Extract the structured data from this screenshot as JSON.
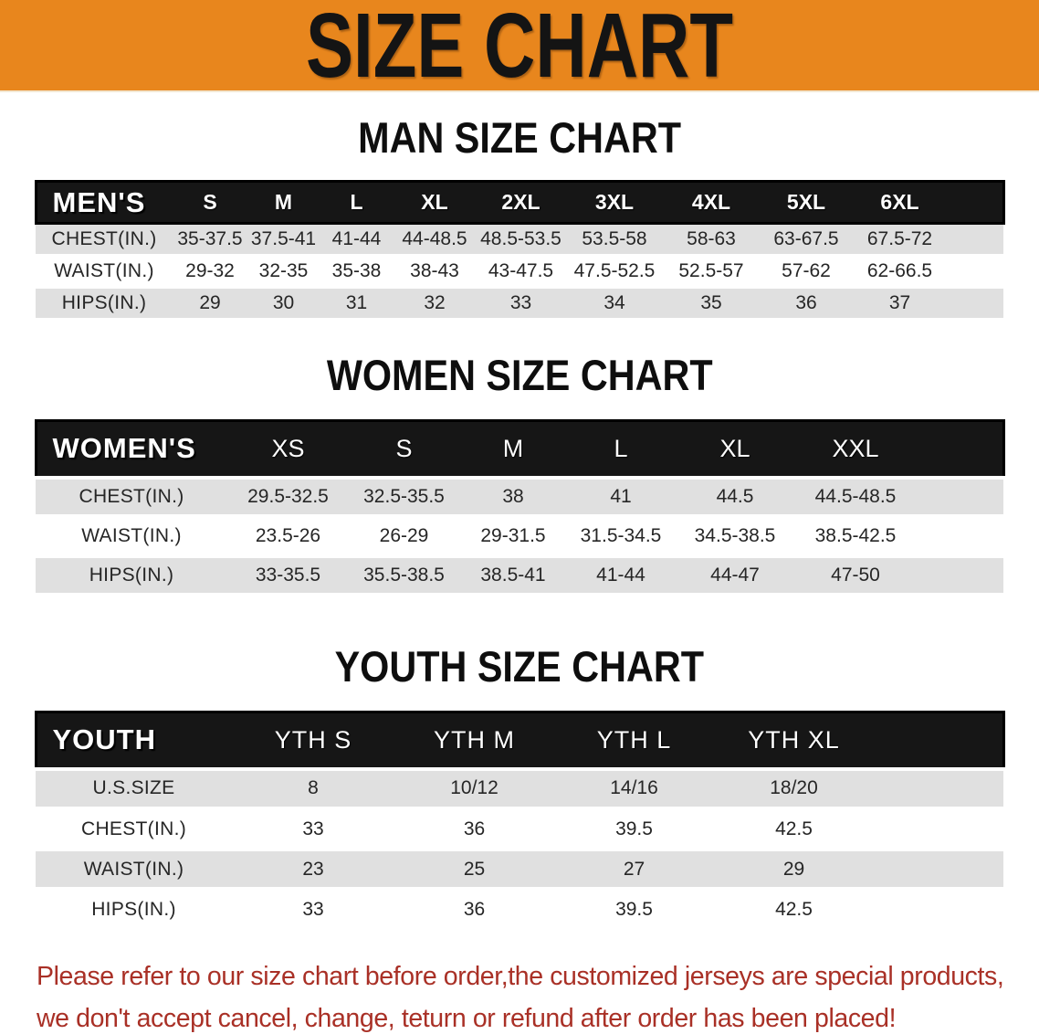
{
  "banner": {
    "title": "SIZE CHART",
    "bg_color": "#E8861D",
    "text_color": "#141414"
  },
  "sections": [
    {
      "heading": "MAN SIZE CHART",
      "table": {
        "header_label": "MEN'S",
        "columns": [
          "S",
          "M",
          "L",
          "XL",
          "2XL",
          "3XL",
          "4XL",
          "5XL",
          "6XL"
        ],
        "rows": [
          {
            "label": "CHEST(IN.)",
            "values": [
              "35-37.5",
              "37.5-41",
              "41-44",
              "44-48.5",
              "48.5-53.5",
              "53.5-58",
              "58-63",
              "63-67.5",
              "67.5-72"
            ]
          },
          {
            "label": "WAIST(IN.)",
            "values": [
              "29-32",
              "32-35",
              "35-38",
              "38-43",
              "43-47.5",
              "47.5-52.5",
              "52.5-57",
              "57-62",
              "62-66.5"
            ]
          },
          {
            "label": "HIPS(IN.)",
            "values": [
              "29",
              "30",
              "31",
              "32",
              "33",
              "34",
              "35",
              "36",
              "37"
            ]
          }
        ]
      }
    },
    {
      "heading": "WOMEN SIZE CHART",
      "table": {
        "header_label": "WOMEN'S",
        "columns": [
          "XS",
          "S",
          "M",
          "L",
          "XL",
          "XXL"
        ],
        "rows": [
          {
            "label": "CHEST(IN.)",
            "values": [
              "29.5-32.5",
              "32.5-35.5",
              "38",
              "41",
              "44.5",
              "44.5-48.5"
            ]
          },
          {
            "label": "WAIST(IN.)",
            "values": [
              "23.5-26",
              "26-29",
              "29-31.5",
              "31.5-34.5",
              "34.5-38.5",
              "38.5-42.5"
            ]
          },
          {
            "label": "HIPS(IN.)",
            "values": [
              "33-35.5",
              "35.5-38.5",
              "38.5-41",
              "41-44",
              "44-47",
              "47-50"
            ]
          }
        ]
      }
    },
    {
      "heading": "YOUTH SIZE CHART",
      "table": {
        "header_label": "YOUTH",
        "columns": [
          "YTH S",
          "YTH M",
          "YTH L",
          "YTH XL"
        ],
        "rows": [
          {
            "label": "U.S.SIZE",
            "values": [
              "8",
              "10/12",
              "14/16",
              "18/20"
            ]
          },
          {
            "label": "CHEST(IN.)",
            "values": [
              "33",
              "36",
              "39.5",
              "42.5"
            ]
          },
          {
            "label": "WAIST(IN.)",
            "values": [
              "23",
              "25",
              "27",
              "29"
            ]
          },
          {
            "label": "HIPS(IN.)",
            "values": [
              "33",
              "36",
              "39.5",
              "42.5"
            ]
          }
        ]
      }
    }
  ],
  "footer": {
    "line1": "Please refer to our size chart before order,the customized jerseys are special products,",
    "line2": "we don't accept cancel, change, teturn or refund after order has been placed!",
    "text_color": "#A93026"
  }
}
